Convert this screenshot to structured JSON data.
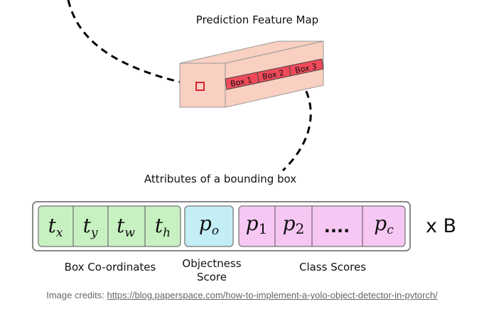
{
  "title": "Prediction Feature Map",
  "boxes": [
    "Box 1",
    "Box 2",
    "Box 3"
  ],
  "attributes_title": "Attributes of a bounding box",
  "coords": [
    {
      "base": "t",
      "sub": "x"
    },
    {
      "base": "t",
      "sub": "y"
    },
    {
      "base": "t",
      "sub": "w"
    },
    {
      "base": "t",
      "sub": "h"
    }
  ],
  "objectness": {
    "base": "p",
    "sub": "o"
  },
  "classes": [
    {
      "base": "p",
      "sub": "1"
    },
    {
      "base": "p",
      "sub": "2"
    },
    {
      "base": "....",
      "sub": ""
    },
    {
      "base": "p",
      "sub": "c"
    }
  ],
  "multiplier": "x B",
  "group_labels": {
    "coords": "Box Co-ordinates",
    "objectness_line1": "Objectness",
    "objectness_line2": "Score",
    "classes": "Class Scores"
  },
  "credit": {
    "prefix": "Image credits: ",
    "url": "https://blog.paperspace.com/how-to-implement-a-yolo-object-detector-in-pytorch/"
  },
  "colors": {
    "cube": "#f9d0c1",
    "box_strip": "#ef4a5b",
    "coords": "#c8f1c2",
    "objectness": "#c4eef6",
    "classes": "#f7c7f3",
    "outline": "#888888"
  }
}
